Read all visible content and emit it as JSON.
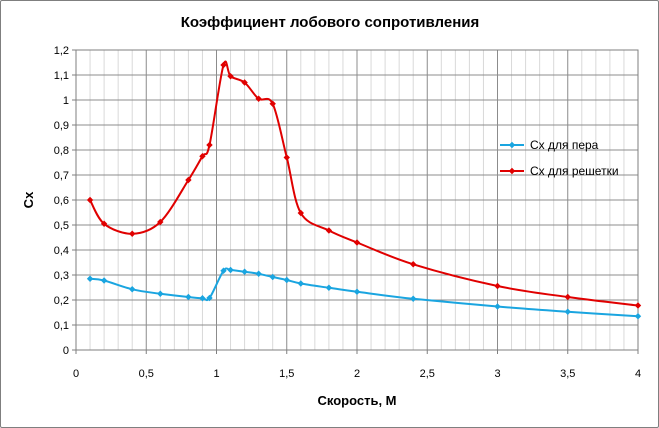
{
  "chart_data": {
    "type": "line",
    "title": "Коэффициент лобового сопротивления",
    "xlabel": "Скорость, М",
    "ylabel": "Cx",
    "xlim": [
      0,
      4
    ],
    "ylim": [
      0,
      1.2
    ],
    "x_ticks": [
      {
        "value": 0,
        "label": "0"
      },
      {
        "value": 0.5,
        "label": "0,5"
      },
      {
        "value": 1,
        "label": "1"
      },
      {
        "value": 1.5,
        "label": "1,5"
      },
      {
        "value": 2,
        "label": "2"
      },
      {
        "value": 2.5,
        "label": "2,5"
      },
      {
        "value": 3,
        "label": "3"
      },
      {
        "value": 3.5,
        "label": "3,5"
      },
      {
        "value": 4,
        "label": "4"
      }
    ],
    "y_ticks": [
      {
        "value": 0,
        "label": "0"
      },
      {
        "value": 0.1,
        "label": "0,1"
      },
      {
        "value": 0.2,
        "label": "0,2"
      },
      {
        "value": 0.3,
        "label": "0,3"
      },
      {
        "value": 0.4,
        "label": "0,4"
      },
      {
        "value": 0.5,
        "label": "0,5"
      },
      {
        "value": 0.6,
        "label": "0,6"
      },
      {
        "value": 0.7,
        "label": "0,7"
      },
      {
        "value": 0.8,
        "label": "0,8"
      },
      {
        "value": 0.9,
        "label": "0,9"
      },
      {
        "value": 1.0,
        "label": "1"
      },
      {
        "value": 1.1,
        "label": "1,1"
      },
      {
        "value": 1.2,
        "label": "1,2"
      }
    ],
    "grid": true,
    "legend_position": "right",
    "series": [
      {
        "name": "Cx для пера",
        "color": "#1aa5e0",
        "x": [
          0.1,
          0.2,
          0.4,
          0.6,
          0.8,
          0.9,
          0.95,
          1.05,
          1.1,
          1.2,
          1.3,
          1.4,
          1.5,
          1.6,
          1.8,
          2.0,
          2.4,
          3.0,
          3.5,
          4.0
        ],
        "y": [
          0.285,
          0.278,
          0.243,
          0.225,
          0.212,
          0.207,
          0.208,
          0.317,
          0.32,
          0.313,
          0.305,
          0.292,
          0.28,
          0.266,
          0.249,
          0.233,
          0.205,
          0.174,
          0.153,
          0.135
        ]
      },
      {
        "name": "Cx для решетки",
        "color": "#e00000",
        "x": [
          0.1,
          0.2,
          0.4,
          0.6,
          0.8,
          0.9,
          0.95,
          1.05,
          1.1,
          1.2,
          1.3,
          1.4,
          1.5,
          1.6,
          1.8,
          2.0,
          2.4,
          3.0,
          3.5,
          4.0
        ],
        "y": [
          0.6,
          0.505,
          0.465,
          0.512,
          0.68,
          0.775,
          0.82,
          1.14,
          1.095,
          1.07,
          1.005,
          0.985,
          0.77,
          0.548,
          0.478,
          0.43,
          0.343,
          0.256,
          0.212,
          0.178
        ]
      }
    ]
  }
}
